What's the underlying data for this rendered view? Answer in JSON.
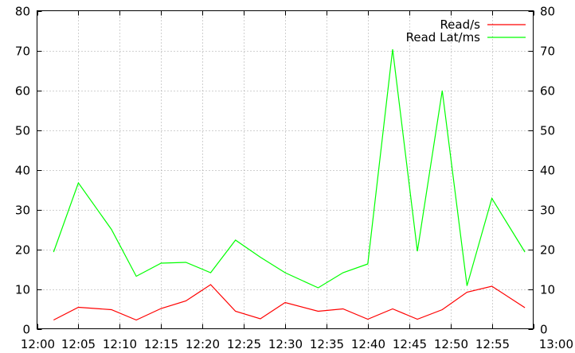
{
  "chart_data": {
    "type": "line",
    "x": [
      "12:02",
      "12:05",
      "12:09",
      "12:12",
      "12:15",
      "12:18",
      "12:21",
      "12:24",
      "12:27",
      "12:30",
      "12:34",
      "12:37",
      "12:40",
      "12:43",
      "12:46",
      "12:49",
      "12:52",
      "12:55",
      "12:59"
    ],
    "series": [
      {
        "name": "Read/s",
        "color": "#ff0000",
        "values": [
          2.2,
          5.4,
          4.8,
          2.2,
          5.1,
          7.0,
          11.1,
          4.4,
          2.5,
          6.6,
          4.4,
          5.0,
          2.4,
          5.0,
          2.4,
          4.8,
          9.2,
          10.7,
          5.3
        ]
      },
      {
        "name": "Read Lat/ms",
        "color": "#00ff00",
        "values": [
          19.3,
          36.7,
          25.0,
          13.2,
          16.5,
          16.7,
          14.1,
          22.3,
          18.0,
          14.1,
          10.3,
          14.1,
          16.3,
          70.3,
          19.5,
          59.9,
          10.8,
          32.8,
          19.3
        ]
      }
    ],
    "x_ticks": [
      "12:00",
      "12:05",
      "12:10",
      "12:15",
      "12:20",
      "12:25",
      "12:30",
      "12:35",
      "12:40",
      "12:45",
      "12:50",
      "12:55",
      "13:00"
    ],
    "y_ticks": [
      "0",
      "10",
      "20",
      "30",
      "40",
      "50",
      "60",
      "70",
      "80"
    ],
    "xlim": [
      "12:00",
      "13:00"
    ],
    "ylim": [
      0,
      80
    ],
    "grid": true,
    "legend": "top-right",
    "title": "",
    "xlabel": "",
    "ylabel": ""
  }
}
